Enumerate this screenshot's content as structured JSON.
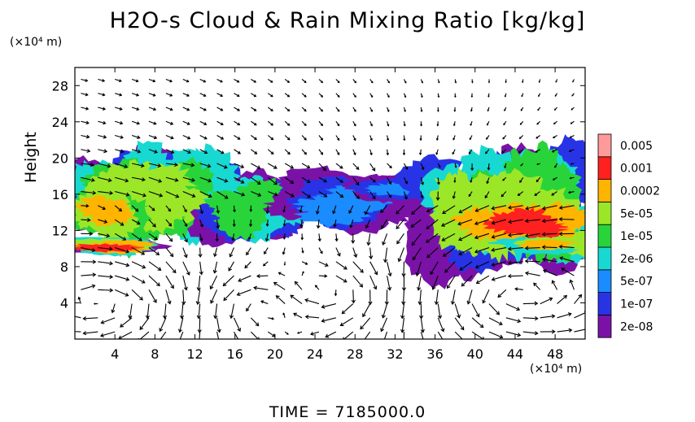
{
  "chart_data": {
    "type": "heatmap",
    "title": "H2O-s Cloud & Rain Mixing Ratio [kg/kg]",
    "ylabel": "Height",
    "xlabel": "",
    "x_units": "(×10⁴ m)",
    "y_units": "(×10⁴ m)",
    "time_label": "TIME = 7185000.0",
    "xlim": [
      0,
      51
    ],
    "ylim": [
      0,
      30
    ],
    "x_ticks": [
      4,
      8,
      12,
      16,
      20,
      24,
      28,
      32,
      36,
      40,
      44,
      48
    ],
    "y_ticks": [
      4,
      8,
      12,
      16,
      20,
      24,
      28
    ],
    "colorbar": {
      "levels": [
        "2e-08",
        "1e-07",
        "5e-07",
        "2e-06",
        "1e-05",
        "5e-05",
        "0.0002",
        "0.001",
        "0.005"
      ],
      "colors": [
        "#7a12a8",
        "#2833e6",
        "#1a8cff",
        "#18d8d2",
        "#28d43a",
        "#9ce628",
        "#ffb400",
        "#ff2020",
        "#ff9a9a"
      ]
    },
    "cloud_regions": [
      {
        "x": [
          0,
          15
        ],
        "y": [
          10,
          19
        ],
        "peak": "5e-05",
        "note": "upper cloud deck left"
      },
      {
        "x": [
          15,
          22
        ],
        "y": [
          12,
          17
        ],
        "peak": "1e-05"
      },
      {
        "x": [
          22,
          33
        ],
        "y": [
          12.5,
          17
        ],
        "peak": "5e-07"
      },
      {
        "x": [
          35,
          51
        ],
        "y": [
          10,
          19
        ],
        "peak": "0.001"
      },
      {
        "x": [
          0.5,
          7
        ],
        "y": [
          9.5,
          11
        ],
        "peak": "0.001",
        "note": "lower rain band left"
      }
    ],
    "grid": true,
    "legend": "right"
  }
}
